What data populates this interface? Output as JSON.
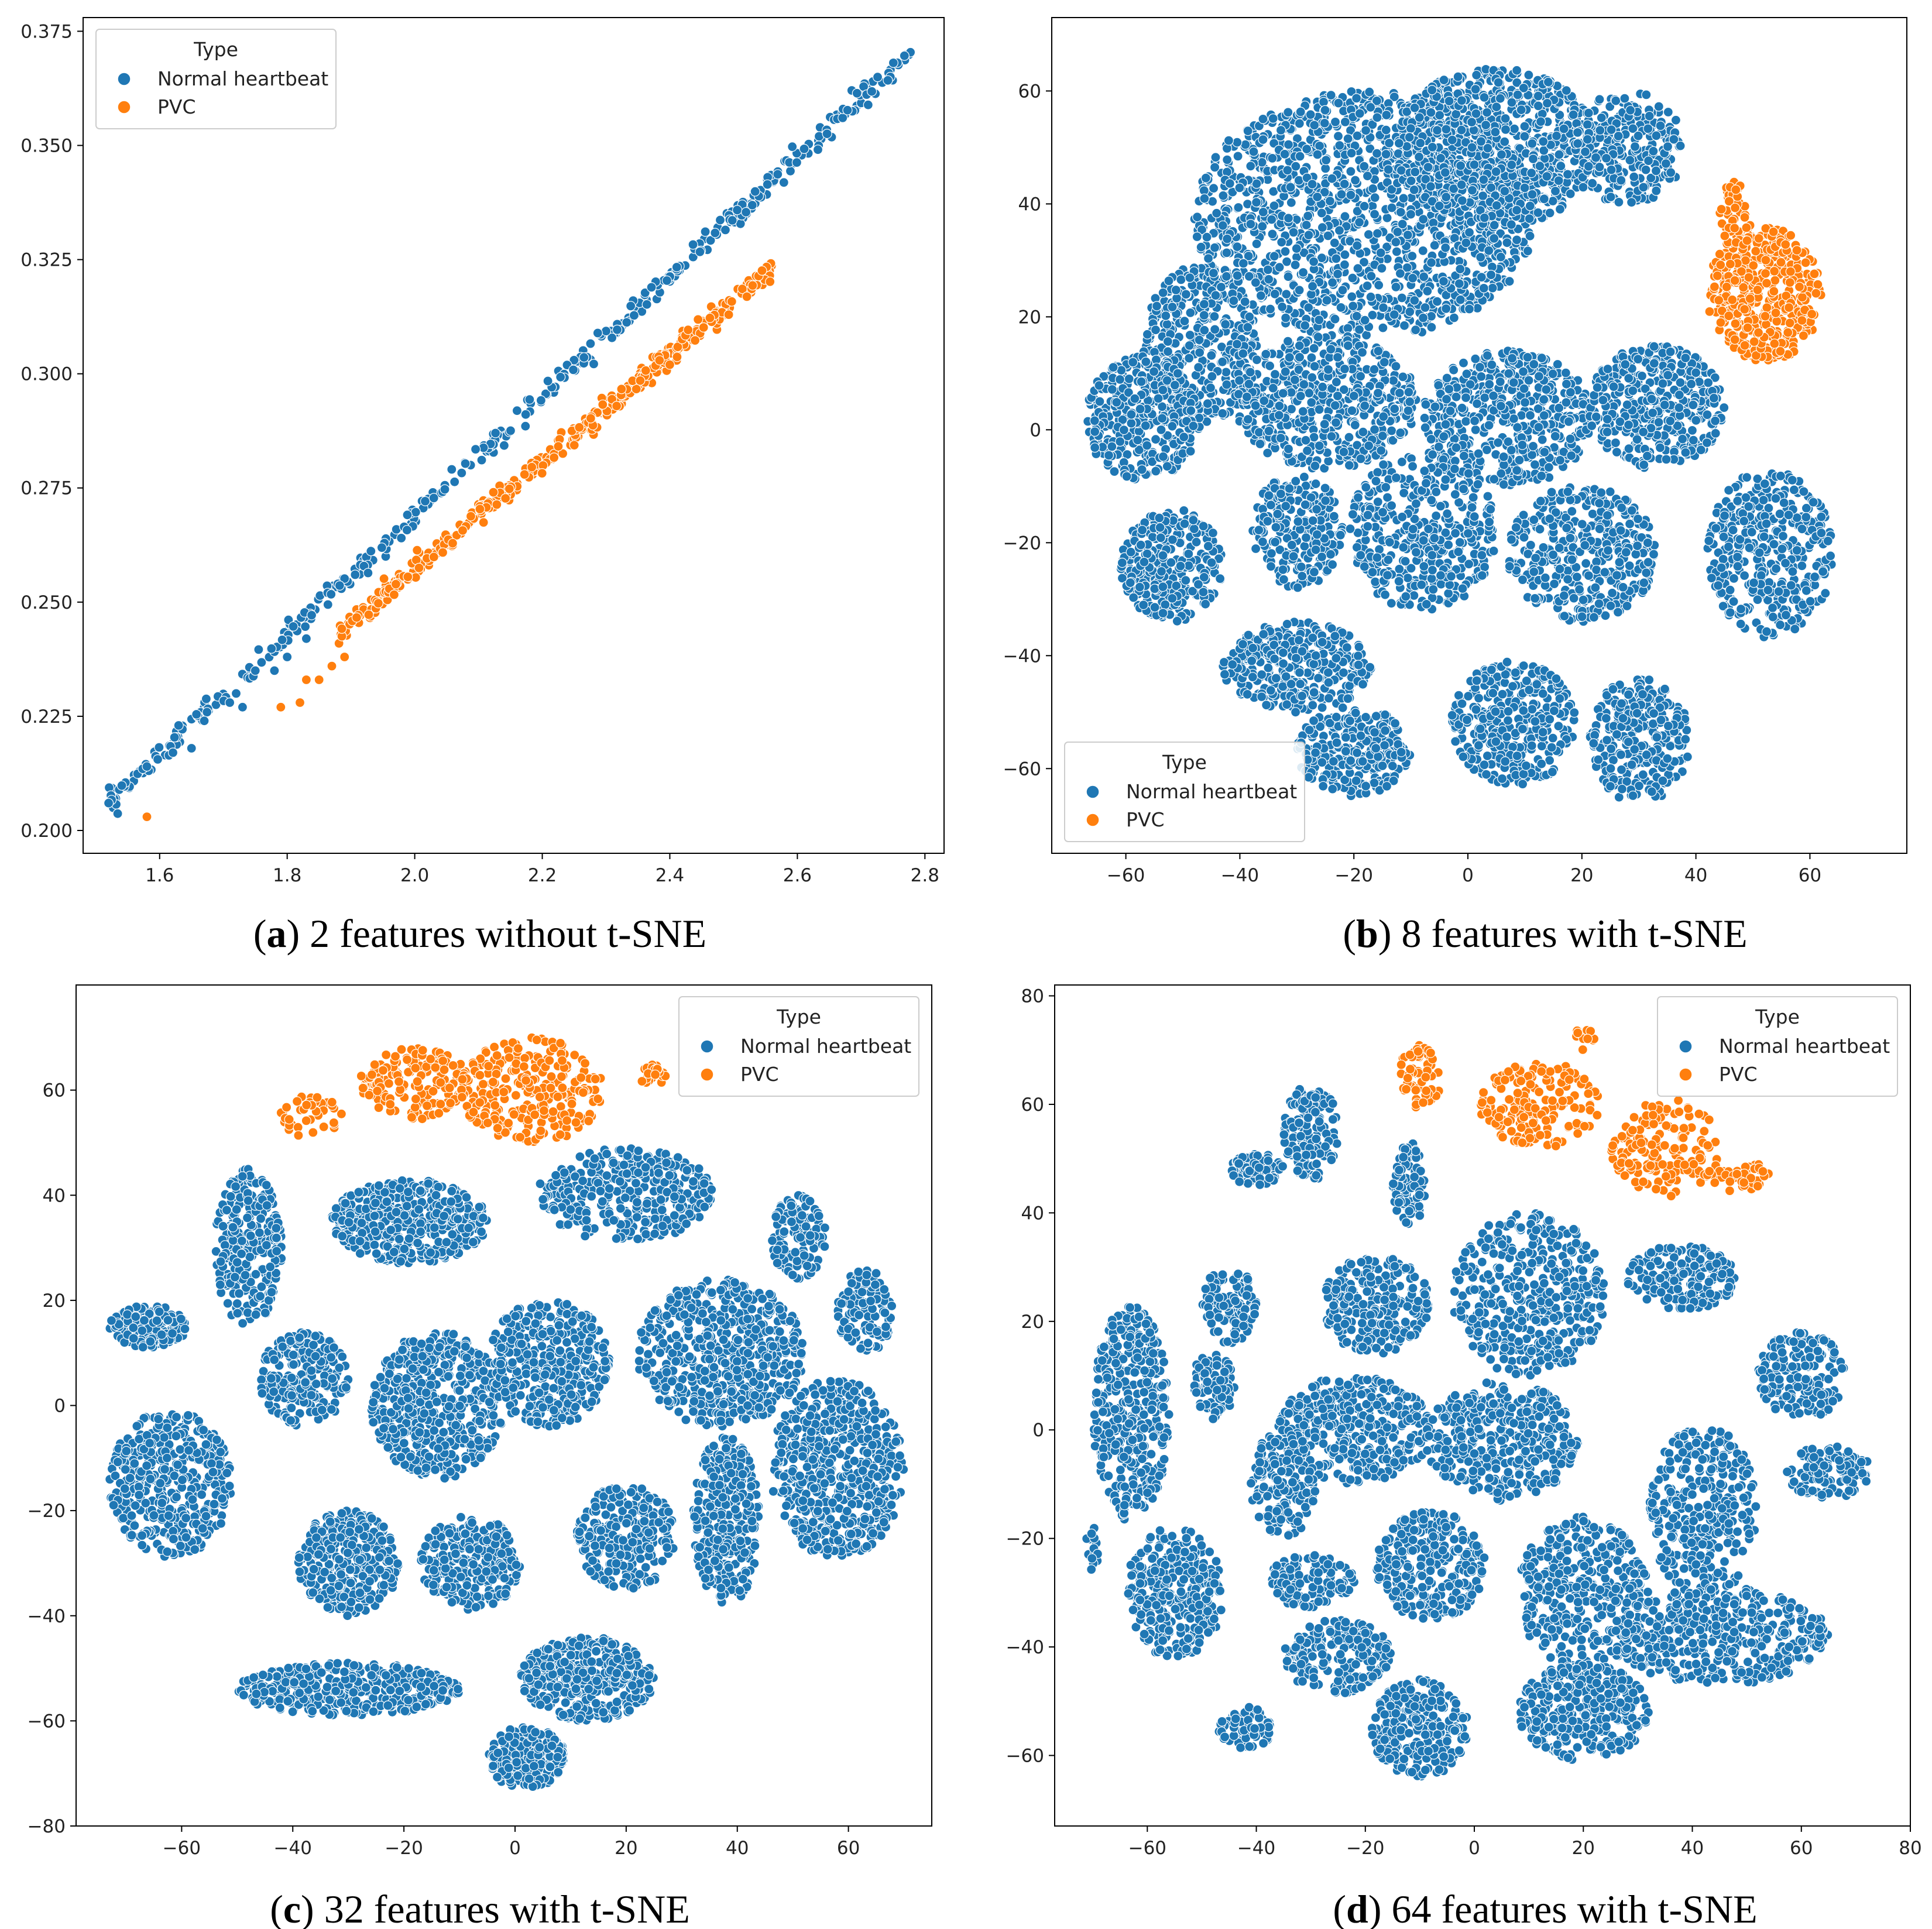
{
  "colors": {
    "normal": "#1f77b4",
    "pvc": "#ff7f0e"
  },
  "chart_data": [
    {
      "type": "scatter",
      "panel": "a",
      "caption_letter": "a",
      "caption_text": "2 features without t-SNE",
      "xlim": [
        1.48,
        2.83
      ],
      "ylim": [
        0.195,
        0.378
      ],
      "xticks": [
        1.6,
        1.8,
        2.0,
        2.2,
        2.4,
        2.6,
        2.8
      ],
      "xtick_labels": [
        "1.6",
        "1.8",
        "2.0",
        "2.2",
        "2.4",
        "2.6",
        "2.8"
      ],
      "yticks": [
        0.2,
        0.225,
        0.25,
        0.275,
        0.3,
        0.325,
        0.35,
        0.375
      ],
      "ytick_labels": [
        "0.200",
        "0.225",
        "0.250",
        "0.275",
        "0.300",
        "0.325",
        "0.350",
        "0.375"
      ],
      "legend": {
        "title": "Type",
        "entries": [
          "Normal heartbeat",
          "PVC"
        ],
        "placement": "upper-left"
      },
      "series": [
        {
          "name": "Normal heartbeat",
          "color": "#1f77b4",
          "lines": [
            {
              "x0": 1.52,
              "y0": 0.206,
              "x1": 2.78,
              "y1": 0.371
            }
          ],
          "points": [
            [
              1.52,
              0.206
            ],
            [
              1.58,
              0.214
            ],
            [
              1.65,
              0.218
            ],
            [
              1.67,
              0.224
            ],
            [
              1.71,
              0.228
            ],
            [
              1.72,
              0.23
            ],
            [
              1.73,
              0.227
            ],
            [
              1.75,
              0.235
            ],
            [
              1.78,
              0.235
            ],
            [
              1.8,
              0.238
            ],
            [
              1.83,
              0.242
            ]
          ]
        },
        {
          "name": "PVC",
          "color": "#ff7f0e",
          "lines": [
            {
              "x0": 1.88,
              "y0": 0.243,
              "x1": 2.56,
              "y1": 0.323
            }
          ],
          "points": [
            [
              1.58,
              0.203
            ],
            [
              1.79,
              0.227
            ],
            [
              1.82,
              0.228
            ],
            [
              1.83,
              0.233
            ],
            [
              1.85,
              0.233
            ],
            [
              1.87,
              0.236
            ],
            [
              1.89,
              0.238
            ]
          ]
        }
      ]
    },
    {
      "type": "scatter",
      "panel": "b",
      "caption_letter": "b",
      "caption_text": "8 features with t-SNE",
      "xlim": [
        -73,
        77
      ],
      "ylim": [
        -75,
        73
      ],
      "xticks": [
        -60,
        -40,
        -20,
        0,
        20,
        40,
        60
      ],
      "xtick_labels": [
        "−60",
        "−40",
        "−20",
        "0",
        "20",
        "40",
        "60"
      ],
      "yticks": [
        -60,
        -40,
        -20,
        0,
        20,
        40,
        60
      ],
      "ytick_labels": [
        "−60",
        "−40",
        "−20",
        "0",
        "20",
        "40",
        "60"
      ],
      "legend": {
        "title": "Type",
        "entries": [
          "Normal heartbeat",
          "PVC"
        ],
        "placement": "lower-left"
      },
      "series": [
        {
          "name": "Normal heartbeat",
          "color": "#1f77b4",
          "clusters": [
            {
              "cx": -18,
              "cy": 38,
              "rx": 30,
              "ry": 22,
              "n": 1400
            },
            {
              "cx": 5,
              "cy": 50,
              "rx": 18,
              "ry": 14,
              "n": 700
            },
            {
              "cx": 28,
              "cy": 50,
              "rx": 10,
              "ry": 10,
              "n": 250
            },
            {
              "cx": -47,
              "cy": 15,
              "rx": 10,
              "ry": 14,
              "n": 350
            },
            {
              "cx": -57,
              "cy": 2,
              "rx": 10,
              "ry": 11,
              "n": 350
            },
            {
              "cx": -25,
              "cy": 5,
              "rx": 16,
              "ry": 12,
              "n": 500
            },
            {
              "cx": 7,
              "cy": 2,
              "rx": 15,
              "ry": 12,
              "n": 500
            },
            {
              "cx": 33,
              "cy": 4,
              "rx": 12,
              "ry": 11,
              "n": 400
            },
            {
              "cx": -52,
              "cy": -24,
              "rx": 9,
              "ry": 10,
              "n": 320
            },
            {
              "cx": -30,
              "cy": -18,
              "rx": 8,
              "ry": 10,
              "n": 220
            },
            {
              "cx": -8,
              "cy": -18,
              "rx": 13,
              "ry": 14,
              "n": 400
            },
            {
              "cx": 20,
              "cy": -22,
              "rx": 13,
              "ry": 12,
              "n": 400
            },
            {
              "cx": 53,
              "cy": -22,
              "rx": 11,
              "ry": 15,
              "n": 380
            },
            {
              "cx": -30,
              "cy": -42,
              "rx": 13,
              "ry": 8,
              "n": 320
            },
            {
              "cx": -20,
              "cy": -57,
              "rx": 10,
              "ry": 8,
              "n": 270
            },
            {
              "cx": 8,
              "cy": -52,
              "rx": 11,
              "ry": 11,
              "n": 330
            },
            {
              "cx": 30,
              "cy": -55,
              "rx": 9,
              "ry": 11,
              "n": 270
            }
          ]
        },
        {
          "name": "PVC",
          "color": "#ff7f0e",
          "clusters": [
            {
              "cx": 52,
              "cy": 24,
              "rx": 10,
              "ry": 12,
              "n": 420
            },
            {
              "cx": 47,
              "cy": 38,
              "rx": 3,
              "ry": 6,
              "n": 50
            }
          ]
        }
      ]
    },
    {
      "type": "scatter",
      "panel": "c",
      "caption_letter": "c",
      "caption_text": "32 features with t-SNE",
      "xlim": [
        -79,
        75
      ],
      "ylim": [
        -80,
        80
      ],
      "xticks": [
        -60,
        -40,
        -20,
        0,
        20,
        40,
        60
      ],
      "xtick_labels": [
        "−60",
        "−40",
        "−20",
        "0",
        "20",
        "40",
        "60"
      ],
      "yticks": [
        -80,
        -60,
        -40,
        -20,
        0,
        20,
        40,
        60
      ],
      "ytick_labels": [
        "−80",
        "−60",
        "−40",
        "−20",
        "0",
        "20",
        "40",
        "60"
      ],
      "legend": {
        "title": "Type",
        "entries": [
          "Normal heartbeat",
          "PVC"
        ],
        "placement": "upper-right"
      },
      "series": [
        {
          "name": "Normal heartbeat",
          "color": "#1f77b4",
          "clusters": [
            {
              "cx": -66,
              "cy": 15,
              "rx": 7,
              "ry": 4,
              "n": 160
            },
            {
              "cx": -48,
              "cy": 30,
              "rx": 6,
              "ry": 15,
              "n": 260
            },
            {
              "cx": -19,
              "cy": 35,
              "rx": 14,
              "ry": 8,
              "n": 420
            },
            {
              "cx": 20,
              "cy": 40,
              "rx": 16,
              "ry": 9,
              "n": 350
            },
            {
              "cx": 51,
              "cy": 32,
              "rx": 5,
              "ry": 8,
              "n": 130
            },
            {
              "cx": 63,
              "cy": 18,
              "rx": 5,
              "ry": 8,
              "n": 120
            },
            {
              "cx": -38,
              "cy": 5,
              "rx": 8,
              "ry": 9,
              "n": 220
            },
            {
              "cx": -14,
              "cy": 0,
              "rx": 12,
              "ry": 14,
              "n": 520
            },
            {
              "cx": 6,
              "cy": 8,
              "rx": 11,
              "ry": 12,
              "n": 380
            },
            {
              "cx": 37,
              "cy": 10,
              "rx": 15,
              "ry": 14,
              "n": 560
            },
            {
              "cx": -62,
              "cy": -15,
              "rx": 11,
              "ry": 14,
              "n": 420
            },
            {
              "cx": -30,
              "cy": -30,
              "rx": 9,
              "ry": 10,
              "n": 320
            },
            {
              "cx": -8,
              "cy": -30,
              "rx": 9,
              "ry": 9,
              "n": 260
            },
            {
              "cx": 20,
              "cy": -25,
              "rx": 9,
              "ry": 10,
              "n": 260
            },
            {
              "cx": 38,
              "cy": -22,
              "rx": 6,
              "ry": 16,
              "n": 300
            },
            {
              "cx": 58,
              "cy": -12,
              "rx": 12,
              "ry": 17,
              "n": 560
            },
            {
              "cx": -30,
              "cy": -54,
              "rx": 20,
              "ry": 5,
              "n": 400
            },
            {
              "cx": 13,
              "cy": -52,
              "rx": 12,
              "ry": 8,
              "n": 360
            },
            {
              "cx": 2,
              "cy": -67,
              "rx": 7,
              "ry": 6,
              "n": 220
            }
          ]
        },
        {
          "name": "PVC",
          "color": "#ff7f0e",
          "clusters": [
            {
              "cx": -18,
              "cy": 61,
              "rx": 10,
              "ry": 7,
              "n": 170
            },
            {
              "cx": 3,
              "cy": 60,
              "rx": 13,
              "ry": 10,
              "n": 260
            },
            {
              "cx": -37,
              "cy": 55,
              "rx": 6,
              "ry": 4,
              "n": 40
            },
            {
              "cx": 25,
              "cy": 63,
              "rx": 3,
              "ry": 2,
              "n": 25
            }
          ]
        }
      ]
    },
    {
      "type": "scatter",
      "panel": "d",
      "caption_letter": "d",
      "caption_text": "64 features with t-SNE",
      "xlim": [
        -77,
        80
      ],
      "ylim": [
        -73,
        82
      ],
      "xticks": [
        -60,
        -40,
        -20,
        0,
        20,
        40,
        60,
        80
      ],
      "xtick_labels": [
        "−60",
        "−40",
        "−20",
        "0",
        "20",
        "40",
        "60",
        "80"
      ],
      "yticks": [
        -60,
        -40,
        -20,
        0,
        20,
        40,
        60,
        80
      ],
      "ytick_labels": [
        "−60",
        "−40",
        "−20",
        "0",
        "20",
        "40",
        "60",
        "80"
      ],
      "legend": {
        "title": "Type",
        "entries": [
          "Normal heartbeat",
          "PVC"
        ],
        "placement": "upper-right"
      },
      "series": [
        {
          "name": "Normal heartbeat",
          "color": "#1f77b4",
          "clusters": [
            {
              "cx": -63,
              "cy": 3,
              "rx": 7,
              "ry": 20,
              "n": 380
            },
            {
              "cx": -40,
              "cy": 48,
              "rx": 5,
              "ry": 3,
              "n": 70
            },
            {
              "cx": -30,
              "cy": 55,
              "rx": 5,
              "ry": 9,
              "n": 150
            },
            {
              "cx": -12,
              "cy": 45,
              "rx": 3,
              "ry": 8,
              "n": 80
            },
            {
              "cx": -45,
              "cy": 23,
              "rx": 5,
              "ry": 7,
              "n": 110
            },
            {
              "cx": -48,
              "cy": 8,
              "rx": 4,
              "ry": 6,
              "n": 80
            },
            {
              "cx": -18,
              "cy": 23,
              "rx": 10,
              "ry": 9,
              "n": 240
            },
            {
              "cx": 10,
              "cy": 25,
              "rx": 14,
              "ry": 15,
              "n": 420
            },
            {
              "cx": 38,
              "cy": 28,
              "rx": 10,
              "ry": 6,
              "n": 180
            },
            {
              "cx": -22,
              "cy": 0,
              "rx": 14,
              "ry": 10,
              "n": 380
            },
            {
              "cx": -35,
              "cy": -10,
              "rx": 6,
              "ry": 10,
              "n": 160
            },
            {
              "cx": 5,
              "cy": -2,
              "rx": 14,
              "ry": 11,
              "n": 380
            },
            {
              "cx": 42,
              "cy": -15,
              "rx": 10,
              "ry": 16,
              "n": 320
            },
            {
              "cx": 60,
              "cy": 10,
              "rx": 8,
              "ry": 8,
              "n": 150
            },
            {
              "cx": 65,
              "cy": -8,
              "rx": 8,
              "ry": 5,
              "n": 110
            },
            {
              "cx": -55,
              "cy": -30,
              "rx": 9,
              "ry": 12,
              "n": 320
            },
            {
              "cx": -30,
              "cy": -28,
              "rx": 8,
              "ry": 5,
              "n": 120
            },
            {
              "cx": -8,
              "cy": -25,
              "rx": 10,
              "ry": 10,
              "n": 280
            },
            {
              "cx": 20,
              "cy": -30,
              "rx": 12,
              "ry": 14,
              "n": 360
            },
            {
              "cx": 45,
              "cy": -38,
              "rx": 20,
              "ry": 9,
              "n": 420
            },
            {
              "cx": -25,
              "cy": -42,
              "rx": 10,
              "ry": 7,
              "n": 200
            },
            {
              "cx": -10,
              "cy": -55,
              "rx": 9,
              "ry": 9,
              "n": 250
            },
            {
              "cx": 20,
              "cy": -52,
              "rx": 12,
              "ry": 9,
              "n": 320
            },
            {
              "cx": -42,
              "cy": -55,
              "rx": 5,
              "ry": 4,
              "n": 70
            },
            {
              "cx": -70,
              "cy": -22,
              "rx": 1.5,
              "ry": 4,
              "n": 14
            }
          ]
        },
        {
          "name": "PVC",
          "color": "#ff7f0e",
          "clusters": [
            {
              "cx": -10,
              "cy": 65,
              "rx": 4,
              "ry": 6,
              "n": 60
            },
            {
              "cx": 12,
              "cy": 60,
              "rx": 11,
              "ry": 8,
              "n": 160
            },
            {
              "cx": 35,
              "cy": 52,
              "rx": 10,
              "ry": 9,
              "n": 150
            },
            {
              "cx": 48,
              "cy": 47,
              "rx": 6,
              "ry": 3,
              "n": 50
            },
            {
              "cx": 20,
              "cy": 72,
              "rx": 2,
              "ry": 2,
              "n": 15
            }
          ]
        }
      ]
    }
  ]
}
